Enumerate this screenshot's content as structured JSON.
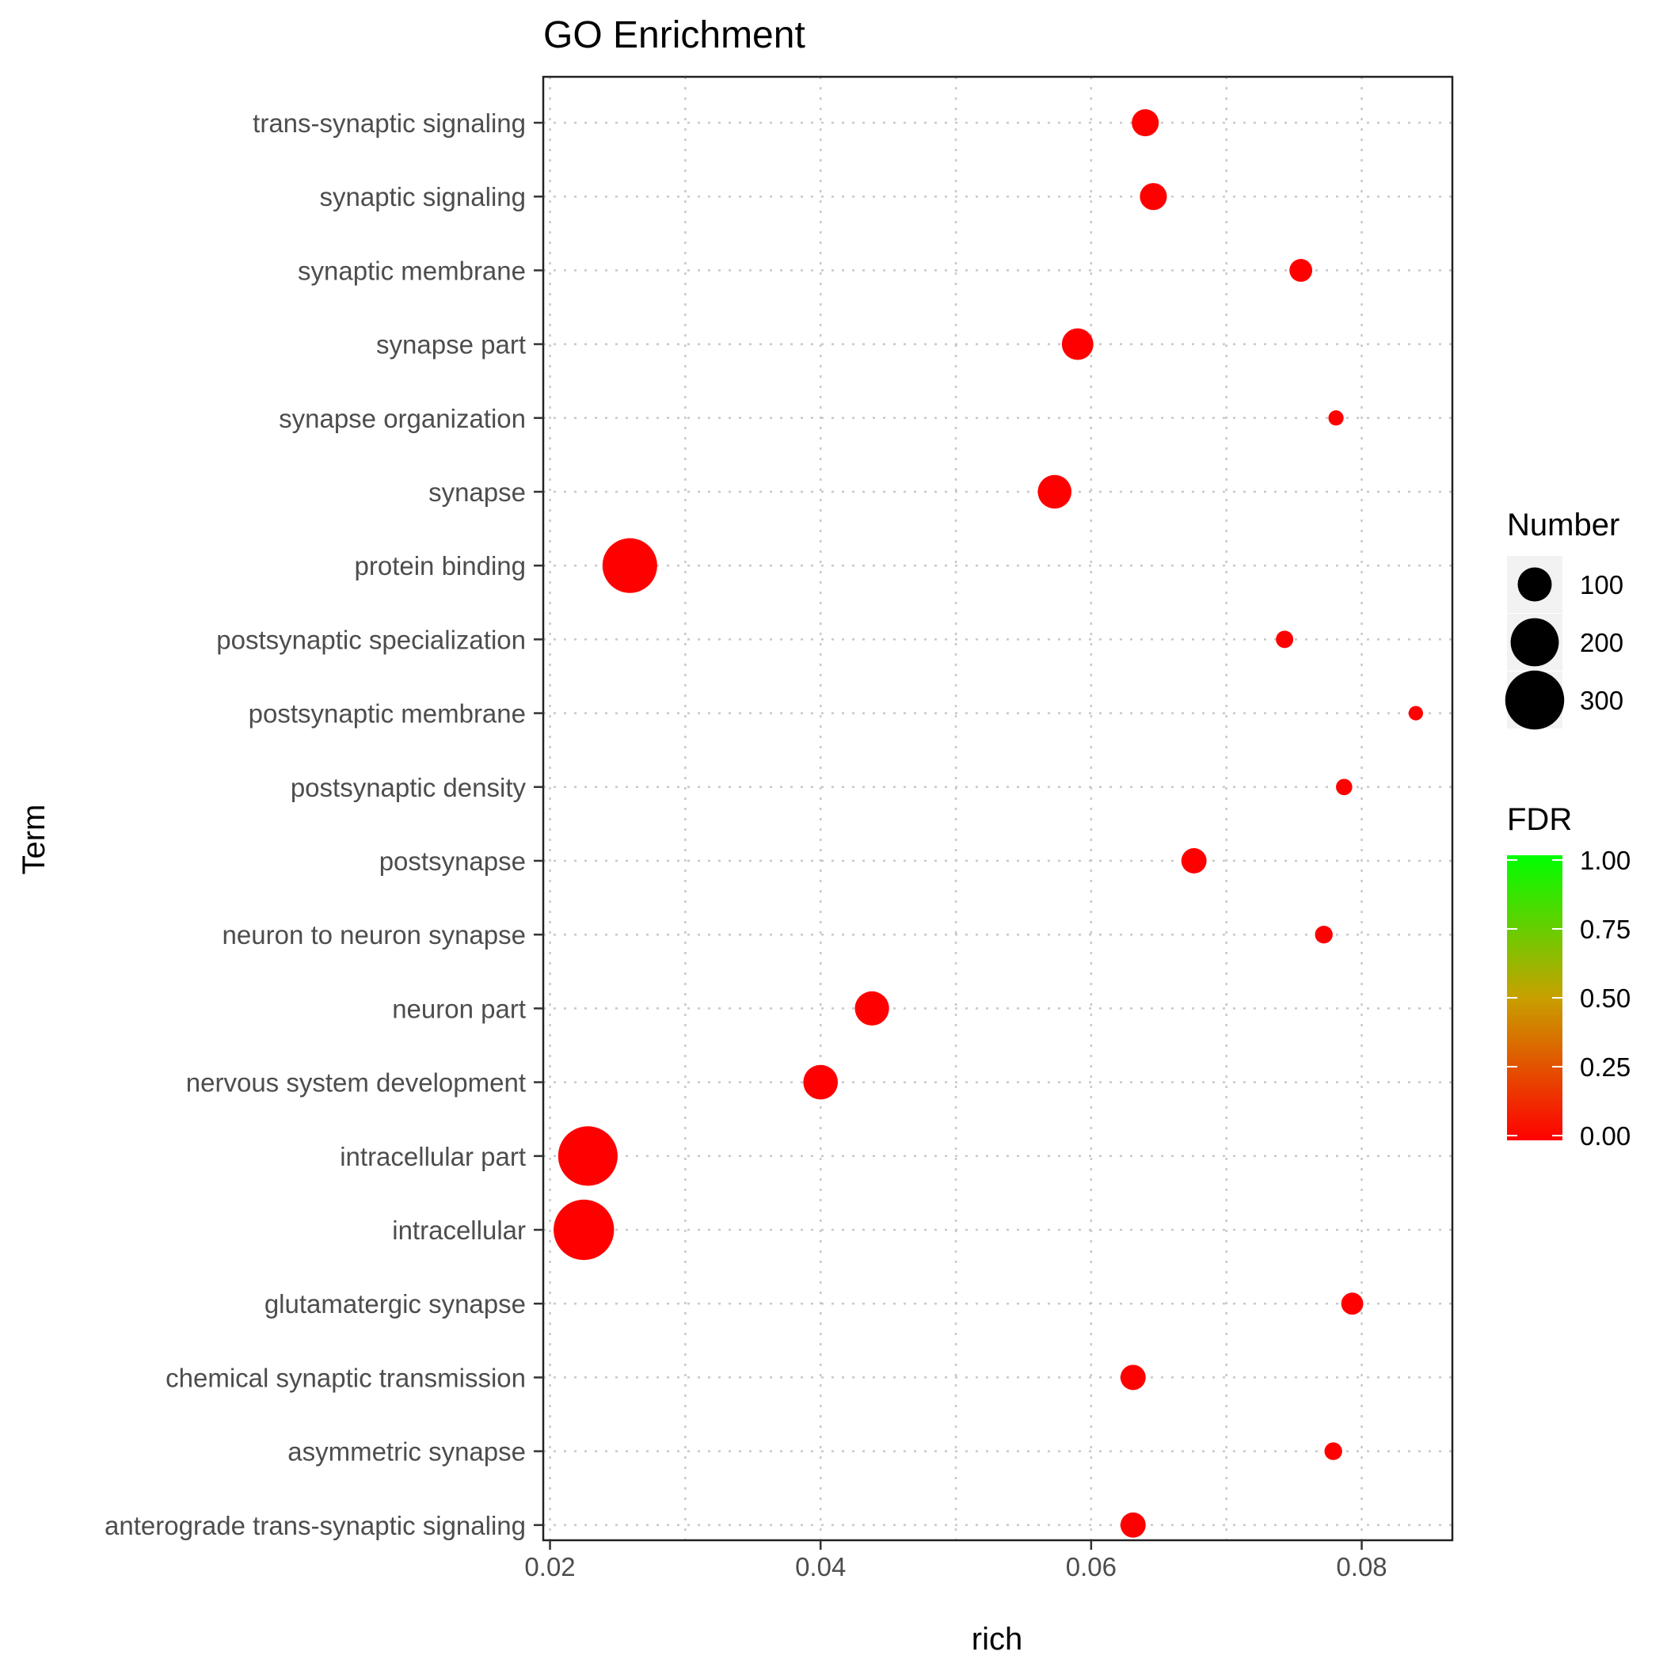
{
  "chart_data": {
    "type": "scatter",
    "title": "GO Enrichment",
    "xlabel": "rich",
    "ylabel": "Term",
    "xlim": [
      0.0195,
      0.0867
    ],
    "x_ticks": [
      0.02,
      0.04,
      0.06,
      0.08
    ],
    "x_tick_labels": [
      "0.02",
      "0.04",
      "0.06",
      "0.08"
    ],
    "grid": true,
    "points": [
      {
        "term": "trans-synaptic signaling",
        "rich": 0.064,
        "number": 63,
        "fdr": 0.0
      },
      {
        "term": "synaptic signaling",
        "rich": 0.0646,
        "number": 63,
        "fdr": 0.0
      },
      {
        "term": "synaptic membrane",
        "rich": 0.0755,
        "number": 45,
        "fdr": 0.0
      },
      {
        "term": "synapse part",
        "rich": 0.059,
        "number": 86,
        "fdr": 0.0
      },
      {
        "term": "synapse organization",
        "rich": 0.0781,
        "number": 20,
        "fdr": 0.0
      },
      {
        "term": "synapse",
        "rich": 0.0573,
        "number": 98,
        "fdr": 0.0
      },
      {
        "term": "protein binding",
        "rich": 0.0259,
        "number": 258,
        "fdr": 0.0
      },
      {
        "term": "postsynaptic specialization",
        "rich": 0.0743,
        "number": 26,
        "fdr": 0.0
      },
      {
        "term": "postsynaptic membrane",
        "rich": 0.084,
        "number": 18,
        "fdr": 0.0
      },
      {
        "term": "postsynaptic density",
        "rich": 0.0787,
        "number": 23,
        "fdr": 0.0
      },
      {
        "term": "postsynapse",
        "rich": 0.0676,
        "number": 55,
        "fdr": 0.0
      },
      {
        "term": "neuron to neuron synapse",
        "rich": 0.0772,
        "number": 27,
        "fdr": 0.0
      },
      {
        "term": "neuron part",
        "rich": 0.0438,
        "number": 101,
        "fdr": 0.0
      },
      {
        "term": "nervous system development",
        "rich": 0.04,
        "number": 103,
        "fdr": 0.0
      },
      {
        "term": "intracellular part",
        "rich": 0.0228,
        "number": 305,
        "fdr": 0.0
      },
      {
        "term": "intracellular",
        "rich": 0.0225,
        "number": 315,
        "fdr": 0.0
      },
      {
        "term": "glutamatergic synapse",
        "rich": 0.0793,
        "number": 42,
        "fdr": 0.0
      },
      {
        "term": "chemical synaptic transmission",
        "rich": 0.0631,
        "number": 55,
        "fdr": 0.0
      },
      {
        "term": "asymmetric synapse",
        "rich": 0.0779,
        "number": 27,
        "fdr": 0.0
      },
      {
        "term": "anterograde trans-synaptic signaling",
        "rich": 0.0631,
        "number": 55,
        "fdr": 0.0
      }
    ],
    "size_legend": {
      "title": "Number",
      "values": [
        100,
        200,
        300
      ],
      "labels": [
        "100",
        "200",
        "300"
      ]
    },
    "color_legend": {
      "title": "FDR",
      "range": [
        0.0,
        1.0
      ],
      "ticks": [
        0.0,
        0.25,
        0.5,
        0.75,
        1.0
      ],
      "tick_labels": [
        "0.00",
        "0.25",
        "0.50",
        "0.75",
        "1.00"
      ],
      "low_color": "#ff0000",
      "high_color": "#00ff00"
    }
  }
}
